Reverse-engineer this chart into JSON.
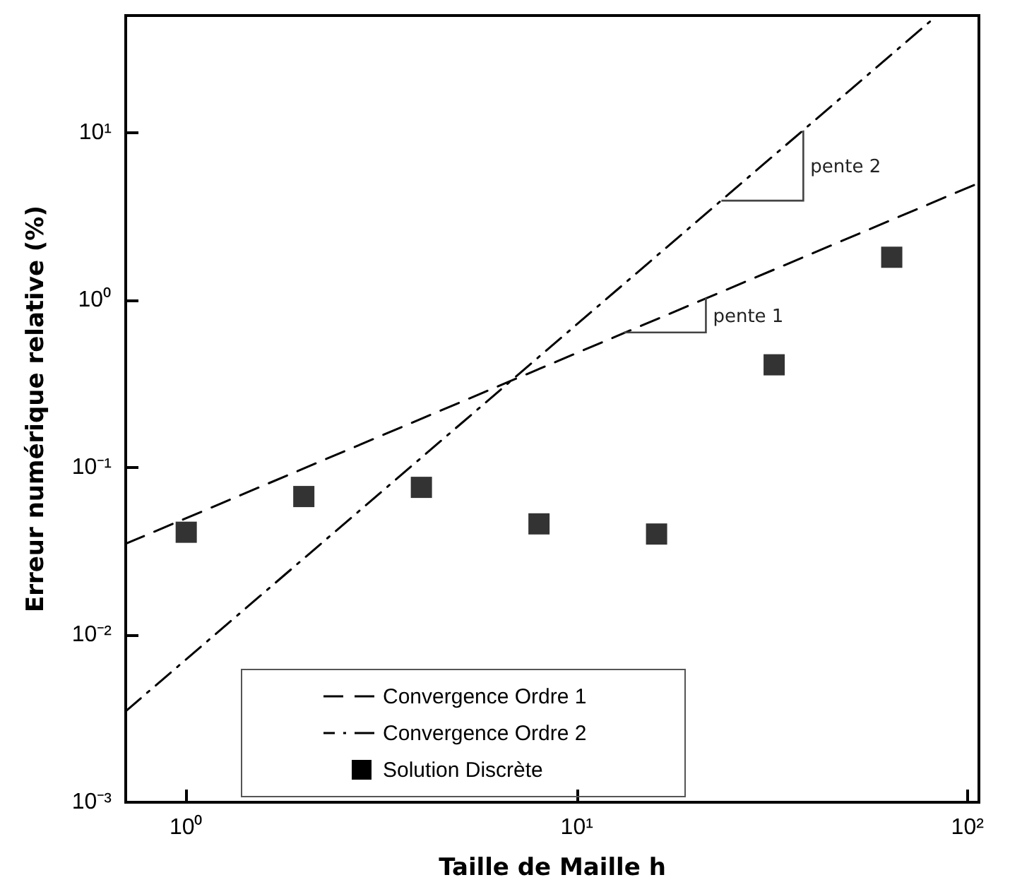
{
  "chart_data": {
    "type": "line",
    "xlabel": "Taille de Maille h",
    "ylabel": "Erreur numérique relative (%)",
    "log": "xy",
    "xlim": [
      0.7,
      107
    ],
    "ylim": [
      0.001,
      50
    ],
    "xticks": [
      {
        "value": 1,
        "label": "10⁰"
      },
      {
        "value": 10,
        "label": "10¹"
      },
      {
        "value": 100,
        "label": "10²"
      }
    ],
    "yticks": [
      {
        "value": 0.001,
        "label": "10⁻³"
      },
      {
        "value": 0.01,
        "label": "10⁻²"
      },
      {
        "value": 0.1,
        "label": "10⁻¹"
      },
      {
        "value": 1,
        "label": "10⁰"
      },
      {
        "value": 10,
        "label": "10¹"
      }
    ],
    "grid": false,
    "legend": "bottom",
    "series": [
      {
        "name": "Convergence Ordre 1",
        "color": "#000000",
        "line_style": "dashed",
        "marker": "none",
        "x": [
          0.7,
          107
        ],
        "values": [
          0.035,
          5
        ]
      },
      {
        "name": "Convergence Ordre 2",
        "color": "#000000",
        "line_style": "dashdot",
        "marker": "none",
        "x": [
          0.7,
          81
        ],
        "values": [
          0.0035,
          47
        ]
      },
      {
        "name": "Solution Discrète",
        "type": "scatter",
        "color": "#000000",
        "marker": "square",
        "x": [
          1,
          2,
          4,
          8,
          16,
          32,
          64
        ],
        "values": [
          0.041,
          0.067,
          0.076,
          0.046,
          0.04,
          0.41,
          1.8
        ]
      }
    ],
    "annotations": [
      {
        "text": "pente 1",
        "x": 21.4,
        "y": 1.03
      },
      {
        "text": "pente 2",
        "x": 38,
        "y": 10.3
      }
    ]
  }
}
